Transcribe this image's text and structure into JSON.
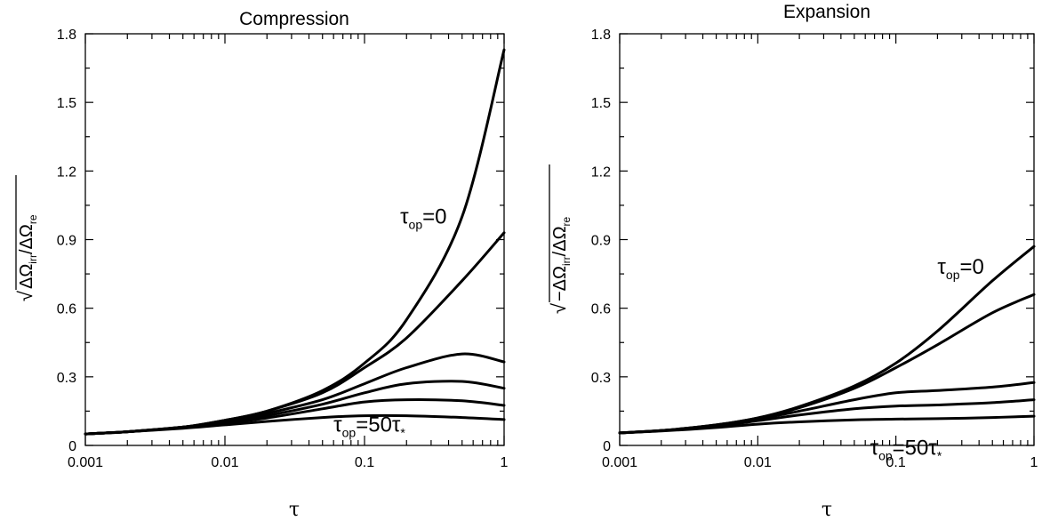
{
  "chart_data": [
    {
      "type": "line",
      "title": "Compression",
      "xlabel": "τ",
      "ylabel": {
        "radicand": "ΔΩ",
        "num_sub": "irr",
        "sep": "/ΔΩ",
        "den_sub": "re"
      },
      "xscale": "log",
      "xlim": [
        0.001,
        1
      ],
      "ylim": [
        0,
        1.8
      ],
      "xticks": [
        {
          "value": 0.001,
          "label": "0.001"
        },
        {
          "value": 0.01,
          "label": "0.01"
        },
        {
          "value": 0.1,
          "label": "0.1"
        },
        {
          "value": 1,
          "label": "1"
        }
      ],
      "yticks": [
        {
          "value": 0,
          "label": "0"
        },
        {
          "value": 0.3,
          "label": "0.3"
        },
        {
          "value": 0.6,
          "label": "0.6"
        },
        {
          "value": 0.9,
          "label": "0.9"
        },
        {
          "value": 1.2,
          "label": "1.2"
        },
        {
          "value": 1.5,
          "label": "1.5"
        },
        {
          "value": 1.8,
          "label": "1.8"
        }
      ],
      "grid": false,
      "annotations": [
        {
          "base": "τ",
          "sub": "op",
          "rest": "=0",
          "rest_sub": "",
          "x": 0.18,
          "y": 0.97
        },
        {
          "base": "τ",
          "sub": "op",
          "rest": "=50τ",
          "rest_sub": "*",
          "x": 0.06,
          "y": 0.06
        }
      ],
      "series": [
        {
          "x": [
            0.001,
            0.002,
            0.005,
            0.01,
            0.02,
            0.05,
            0.1,
            0.2,
            0.5,
            1
          ],
          "y": [
            0.05,
            0.06,
            0.08,
            0.11,
            0.15,
            0.24,
            0.36,
            0.55,
            1.0,
            1.73
          ]
        },
        {
          "x": [
            0.001,
            0.002,
            0.005,
            0.01,
            0.02,
            0.05,
            0.1,
            0.2,
            0.5,
            1
          ],
          "y": [
            0.05,
            0.06,
            0.08,
            0.11,
            0.15,
            0.23,
            0.34,
            0.47,
            0.72,
            0.93
          ]
        },
        {
          "x": [
            0.001,
            0.002,
            0.005,
            0.01,
            0.02,
            0.05,
            0.1,
            0.2,
            0.5,
            1
          ],
          "y": [
            0.05,
            0.06,
            0.08,
            0.105,
            0.14,
            0.2,
            0.27,
            0.34,
            0.4,
            0.365
          ]
        },
        {
          "x": [
            0.001,
            0.002,
            0.005,
            0.01,
            0.02,
            0.05,
            0.1,
            0.2,
            0.5,
            1
          ],
          "y": [
            0.05,
            0.06,
            0.08,
            0.1,
            0.13,
            0.18,
            0.23,
            0.27,
            0.28,
            0.25
          ]
        },
        {
          "x": [
            0.001,
            0.002,
            0.005,
            0.01,
            0.02,
            0.05,
            0.1,
            0.2,
            0.5,
            1
          ],
          "y": [
            0.05,
            0.06,
            0.078,
            0.097,
            0.12,
            0.16,
            0.19,
            0.2,
            0.195,
            0.175
          ]
        },
        {
          "x": [
            0.001,
            0.002,
            0.005,
            0.01,
            0.02,
            0.05,
            0.1,
            0.2,
            0.5,
            1
          ],
          "y": [
            0.05,
            0.06,
            0.075,
            0.09,
            0.105,
            0.122,
            0.13,
            0.13,
            0.122,
            0.113
          ]
        }
      ]
    },
    {
      "type": "line",
      "title": "Expansion",
      "xlabel": "τ",
      "ylabel": {
        "radicand": "−ΔΩ",
        "num_sub": "irr",
        "sep": "/ΔΩ",
        "den_sub": "re"
      },
      "xscale": "log",
      "xlim": [
        0.001,
        1
      ],
      "ylim": [
        0,
        1.8
      ],
      "xticks": [
        {
          "value": 0.001,
          "label": "0.001"
        },
        {
          "value": 0.01,
          "label": "0.01"
        },
        {
          "value": 0.1,
          "label": "0.1"
        },
        {
          "value": 1,
          "label": "1"
        }
      ],
      "yticks": [
        {
          "value": 0,
          "label": "0"
        },
        {
          "value": 0.3,
          "label": "0.3"
        },
        {
          "value": 0.6,
          "label": "0.6"
        },
        {
          "value": 0.9,
          "label": "0.9"
        },
        {
          "value": 1.2,
          "label": "1.2"
        },
        {
          "value": 1.5,
          "label": "1.5"
        },
        {
          "value": 1.8,
          "label": "1.8"
        }
      ],
      "grid": false,
      "annotations": [
        {
          "base": "τ",
          "sub": "op",
          "rest": "=0",
          "rest_sub": "",
          "x": 0.2,
          "y": 0.75
        },
        {
          "base": "τ",
          "sub": "op",
          "rest": "=50τ",
          "rest_sub": "*",
          "x": 0.065,
          "y": -0.04
        }
      ],
      "series": [
        {
          "x": [
            0.001,
            0.002,
            0.005,
            0.01,
            0.02,
            0.05,
            0.1,
            0.2,
            0.5,
            1
          ],
          "y": [
            0.055,
            0.065,
            0.09,
            0.12,
            0.17,
            0.26,
            0.36,
            0.5,
            0.72,
            0.87
          ]
        },
        {
          "x": [
            0.001,
            0.002,
            0.005,
            0.01,
            0.02,
            0.05,
            0.1,
            0.2,
            0.5,
            1
          ],
          "y": [
            0.055,
            0.065,
            0.09,
            0.12,
            0.165,
            0.25,
            0.34,
            0.44,
            0.58,
            0.66
          ]
        },
        {
          "x": [
            0.001,
            0.002,
            0.005,
            0.01,
            0.02,
            0.05,
            0.1,
            0.2,
            0.5,
            1
          ],
          "y": [
            0.055,
            0.065,
            0.088,
            0.115,
            0.15,
            0.2,
            0.23,
            0.24,
            0.255,
            0.275
          ]
        },
        {
          "x": [
            0.001,
            0.002,
            0.005,
            0.01,
            0.02,
            0.05,
            0.1,
            0.2,
            0.5,
            1
          ],
          "y": [
            0.055,
            0.065,
            0.085,
            0.108,
            0.133,
            0.16,
            0.172,
            0.177,
            0.187,
            0.2
          ]
        },
        {
          "x": [
            0.001,
            0.002,
            0.005,
            0.01,
            0.02,
            0.05,
            0.1,
            0.2,
            0.5,
            1
          ],
          "y": [
            0.055,
            0.063,
            0.078,
            0.093,
            0.103,
            0.112,
            0.115,
            0.117,
            0.122,
            0.128
          ]
        }
      ]
    }
  ]
}
